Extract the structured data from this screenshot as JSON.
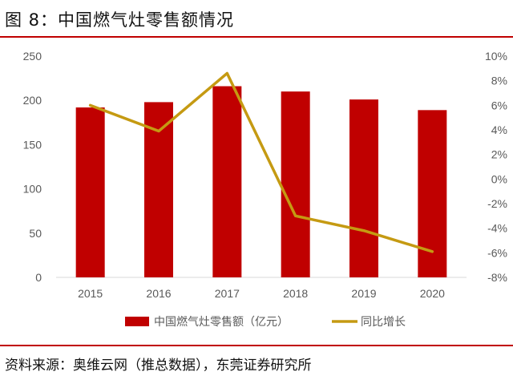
{
  "header": {
    "title": "图 8：中国燃气灶零售额情况"
  },
  "footer": {
    "source": "资料来源：奥维云网（推总数据），东莞证券研究所"
  },
  "colors": {
    "bar": "#c00000",
    "line": "#c59a12",
    "rule": "#c00000",
    "axis_text": "#595959"
  },
  "chart_data": {
    "type": "bar",
    "categories": [
      "2015",
      "2016",
      "2017",
      "2018",
      "2019",
      "2020"
    ],
    "series": [
      {
        "name": "中国燃气灶零售额（亿元）",
        "type": "bar",
        "axis": "left",
        "values": [
          192,
          198,
          216,
          210,
          201,
          189
        ]
      },
      {
        "name": "同比增长",
        "type": "line",
        "axis": "right",
        "values": [
          6.0,
          3.9,
          8.6,
          -3.0,
          -4.2,
          -5.9
        ]
      }
    ],
    "y_left": {
      "min": 0,
      "max": 250,
      "ticks": [
        "0",
        "50",
        "100",
        "150",
        "200",
        "250"
      ]
    },
    "y_right": {
      "min": -8,
      "max": 10,
      "ticks": [
        "-8%",
        "-6%",
        "-4%",
        "-2%",
        "0%",
        "2%",
        "4%",
        "6%",
        "8%",
        "10%"
      ]
    },
    "legend_position": "bottom",
    "grid": false
  }
}
